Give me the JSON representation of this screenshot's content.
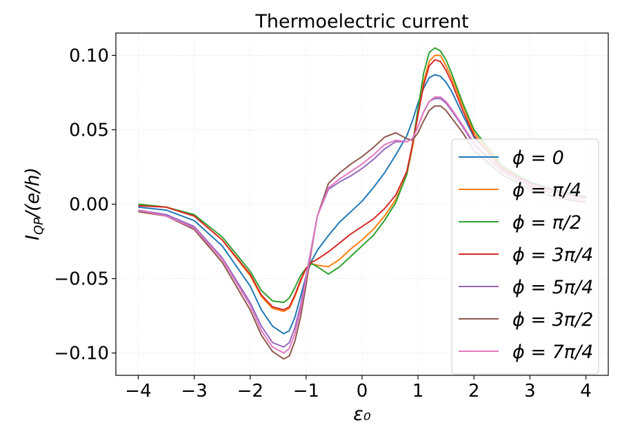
{
  "chart_data": {
    "type": "line",
    "title": "Thermoelectric current",
    "xlabel": "ε₀",
    "ylabel": "I_QP/(e/h)",
    "xlim": [
      -4.4,
      4.4
    ],
    "ylim": [
      -0.115,
      0.115
    ],
    "xticks": [
      -4,
      -3,
      -2,
      -1,
      0,
      1,
      2,
      3,
      4
    ],
    "xtick_labels": [
      "−4",
      "−3",
      "−2",
      "−1",
      "0",
      "1",
      "2",
      "3",
      "4"
    ],
    "yticks": [
      -0.1,
      -0.05,
      0.0,
      0.05,
      0.1
    ],
    "ytick_labels": [
      "−0.10",
      "−0.05",
      "0.00",
      "0.05",
      "0.10"
    ],
    "grid": true,
    "legend_position": "right",
    "x": [
      -4,
      -3.5,
      -3,
      -2.5,
      -2,
      -1.8,
      -1.6,
      -1.4,
      -1.3,
      -1.2,
      -1.1,
      -1.0,
      -0.9,
      -0.8,
      -0.6,
      -0.4,
      -0.2,
      0,
      0.2,
      0.4,
      0.6,
      0.8,
      0.9,
      1.0,
      1.1,
      1.2,
      1.3,
      1.4,
      1.5,
      1.6,
      1.8,
      2.0,
      2.5,
      3.0,
      3.5,
      4.0
    ],
    "series": [
      {
        "name": "ϕ = 0",
        "color": "#1f77b4",
        "values": [
          -0.002,
          -0.004,
          -0.011,
          -0.028,
          -0.055,
          -0.071,
          -0.082,
          -0.087,
          -0.085,
          -0.076,
          -0.062,
          -0.048,
          -0.038,
          -0.031,
          -0.021,
          -0.012,
          -0.005,
          0.002,
          0.011,
          0.021,
          0.033,
          0.046,
          0.056,
          0.068,
          0.078,
          0.085,
          0.087,
          0.086,
          0.082,
          0.076,
          0.06,
          0.045,
          0.025,
          0.015,
          0.009,
          0.005
        ]
      },
      {
        "name": "ϕ = π/4",
        "color": "#ff7f0e",
        "values": [
          0.0,
          -0.002,
          -0.008,
          -0.024,
          -0.048,
          -0.062,
          -0.07,
          -0.072,
          -0.07,
          -0.062,
          -0.052,
          -0.043,
          -0.04,
          -0.041,
          -0.042,
          -0.037,
          -0.03,
          -0.024,
          -0.017,
          -0.008,
          0.003,
          0.02,
          0.038,
          0.06,
          0.082,
          0.096,
          0.1,
          0.1,
          0.093,
          0.085,
          0.066,
          0.048,
          0.025,
          0.014,
          0.008,
          0.004
        ]
      },
      {
        "name": "ϕ = π/2",
        "color": "#2ca02c",
        "values": [
          0.0,
          -0.002,
          -0.007,
          -0.022,
          -0.045,
          -0.058,
          -0.065,
          -0.066,
          -0.063,
          -0.056,
          -0.048,
          -0.043,
          -0.04,
          -0.042,
          -0.047,
          -0.042,
          -0.035,
          -0.028,
          -0.021,
          -0.011,
          0.001,
          0.02,
          0.04,
          0.064,
          0.088,
          0.102,
          0.105,
          0.103,
          0.097,
          0.088,
          0.068,
          0.05,
          0.026,
          0.014,
          0.008,
          0.004
        ]
      },
      {
        "name": "ϕ = 3π/4",
        "color": "#d62728",
        "values": [
          -0.001,
          -0.002,
          -0.008,
          -0.024,
          -0.047,
          -0.061,
          -0.069,
          -0.071,
          -0.069,
          -0.061,
          -0.051,
          -0.043,
          -0.039,
          -0.037,
          -0.032,
          -0.026,
          -0.02,
          -0.015,
          -0.01,
          -0.003,
          0.006,
          0.022,
          0.04,
          0.06,
          0.08,
          0.093,
          0.097,
          0.096,
          0.09,
          0.082,
          0.063,
          0.046,
          0.024,
          0.014,
          0.008,
          0.004
        ]
      },
      {
        "name": "ϕ = 5π/4",
        "color": "#9467bd",
        "values": [
          -0.004,
          -0.007,
          -0.015,
          -0.036,
          -0.066,
          -0.082,
          -0.093,
          -0.096,
          -0.093,
          -0.083,
          -0.068,
          -0.048,
          -0.028,
          -0.008,
          0.01,
          0.015,
          0.019,
          0.024,
          0.03,
          0.037,
          0.042,
          0.042,
          0.044,
          0.052,
          0.062,
          0.069,
          0.071,
          0.071,
          0.068,
          0.063,
          0.052,
          0.04,
          0.022,
          0.012,
          0.006,
          0.002
        ]
      },
      {
        "name": "ϕ = 3π/2",
        "color": "#8c564b",
        "values": [
          -0.005,
          -0.008,
          -0.017,
          -0.039,
          -0.071,
          -0.088,
          -0.099,
          -0.104,
          -0.102,
          -0.092,
          -0.076,
          -0.054,
          -0.03,
          -0.008,
          0.014,
          0.021,
          0.027,
          0.032,
          0.038,
          0.045,
          0.048,
          0.044,
          0.043,
          0.048,
          0.056,
          0.063,
          0.066,
          0.066,
          0.063,
          0.058,
          0.048,
          0.036,
          0.02,
          0.01,
          0.004,
          0.001
        ]
      },
      {
        "name": "ϕ = 7π/4",
        "color": "#e377c2",
        "values": [
          -0.004,
          -0.008,
          -0.016,
          -0.037,
          -0.068,
          -0.085,
          -0.096,
          -0.1,
          -0.097,
          -0.087,
          -0.071,
          -0.05,
          -0.029,
          -0.008,
          0.011,
          0.017,
          0.022,
          0.027,
          0.033,
          0.04,
          0.043,
          0.042,
          0.044,
          0.052,
          0.062,
          0.069,
          0.072,
          0.072,
          0.069,
          0.064,
          0.053,
          0.041,
          0.023,
          0.013,
          0.006,
          0.002
        ]
      }
    ]
  }
}
